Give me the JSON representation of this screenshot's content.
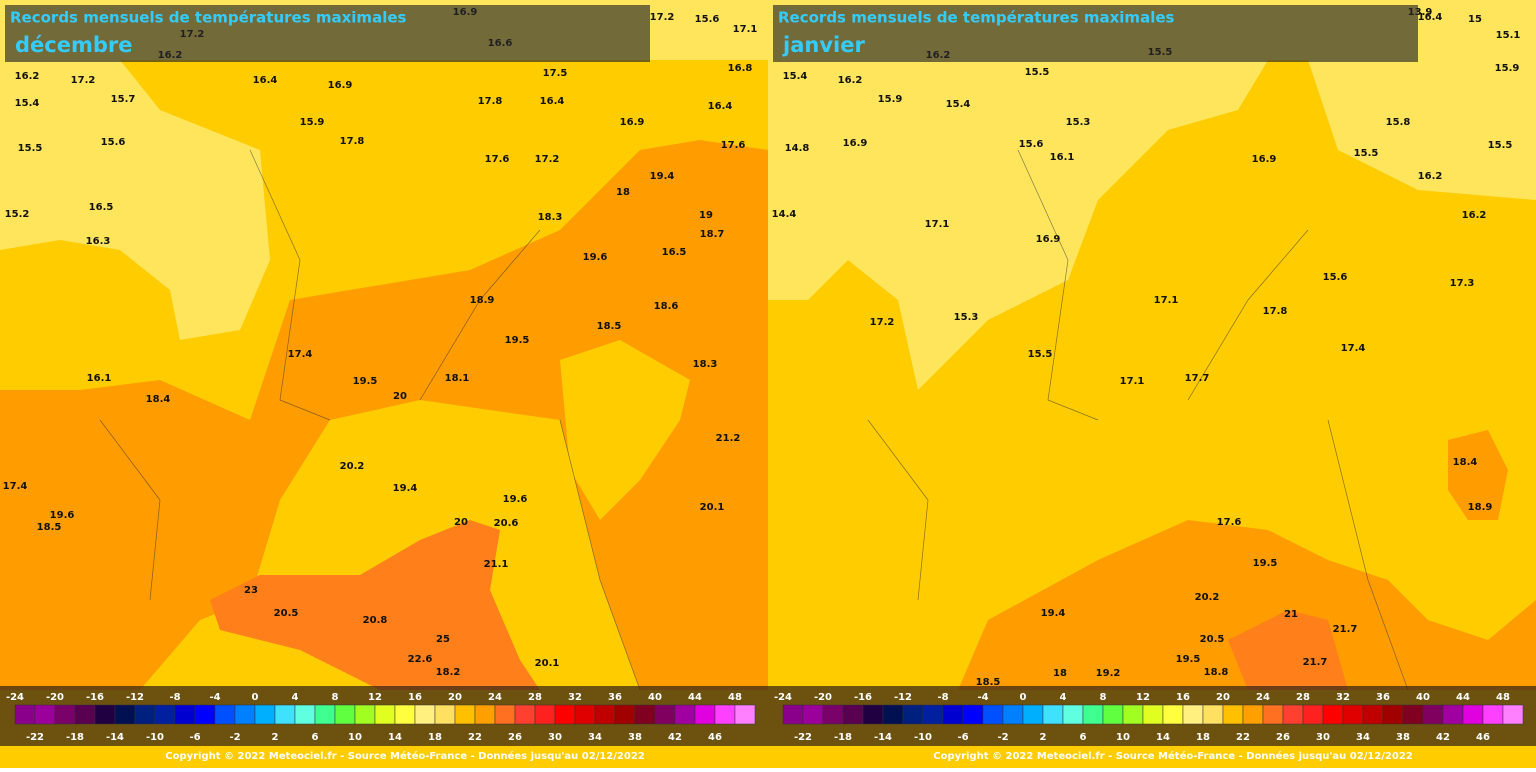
{
  "panels": [
    {
      "title": "Records mensuels de températures maximales",
      "month": "décembre",
      "stations": [
        "16.9",
        "17.2",
        "15.6",
        "17.1",
        "17.2",
        "16.6",
        "16.2",
        "16.2",
        "17.2",
        "16.4",
        "16.9",
        "17.5",
        "16.8",
        "15.4",
        "15.7",
        "17.8",
        "16.4",
        "16.4",
        "15.9",
        "16.9",
        "15.5",
        "15.6",
        "17.8",
        "17.6",
        "17.2",
        "17.6",
        "15.2",
        "19.4",
        "18",
        "16.5",
        "18.3",
        "19",
        "18.7",
        "16.3",
        "19.6",
        "16.5",
        "18.9",
        "18.6",
        "18.5",
        "19.5",
        "17.4",
        "18.3",
        "16.1",
        "19.5",
        "18.1",
        "20",
        "18.4",
        "21.2",
        "20.2",
        "19.4",
        "19.6",
        "20.1",
        "20",
        "20.6",
        "21.1",
        "23",
        "20.5",
        "20.8",
        "25",
        "22.6",
        "20.1",
        "18.2",
        "18.5",
        "17.4",
        "19.6"
      ],
      "scale": {
        "top": [
          -24,
          -20,
          -16,
          -12,
          -8,
          -4,
          0,
          4,
          8,
          12,
          16,
          20,
          24,
          28,
          32,
          36,
          40,
          44,
          48
        ],
        "bottom": [
          -22,
          -18,
          -14,
          -10,
          -6,
          -2,
          2,
          6,
          10,
          14,
          18,
          22,
          26,
          30,
          34,
          38,
          42,
          46
        ]
      },
      "copyright": "Copyright © 2022 Meteociel.fr - Source Météo-France - Données jusqu'au 02/12/2022"
    },
    {
      "title": "Records mensuels de températures maximales",
      "month": "janvier",
      "stations": [
        "13.9",
        "16.4",
        "15",
        "15.1",
        "15.5",
        "16.2",
        "15.4",
        "16.2",
        "15.5",
        "15.9",
        "15.9",
        "15.4",
        "15.3",
        "15.8",
        "14.8",
        "16.9",
        "15.6",
        "16.1",
        "16.9",
        "15.5",
        "15.5",
        "16.2",
        "14.4",
        "17.1",
        "16.2",
        "16.9",
        "15.6",
        "17.3",
        "17.2",
        "15.3",
        "17.1",
        "17.8",
        "17.4",
        "15.5",
        "17.1",
        "17.7",
        "18.4",
        "18.9",
        "17.6",
        "19.5",
        "20.2",
        "19.4",
        "21",
        "21.7",
        "20.5",
        "21.7",
        "19.5",
        "18.8",
        "19.2",
        "18",
        "18.5"
      ],
      "scale": {
        "top": [
          -24,
          -20,
          -16,
          -12,
          -8,
          -4,
          0,
          4,
          8,
          12,
          16,
          20,
          24,
          28,
          32,
          36,
          40,
          44,
          48
        ],
        "bottom": [
          -22,
          -18,
          -14,
          -10,
          -6,
          -2,
          2,
          6,
          10,
          14,
          18,
          22,
          26,
          30,
          34,
          38,
          42,
          46
        ]
      },
      "copyright": "Copyright © 2022 Meteociel.fr - Source Météo-France - Données jusqu'au 02/12/2022"
    }
  ]
}
